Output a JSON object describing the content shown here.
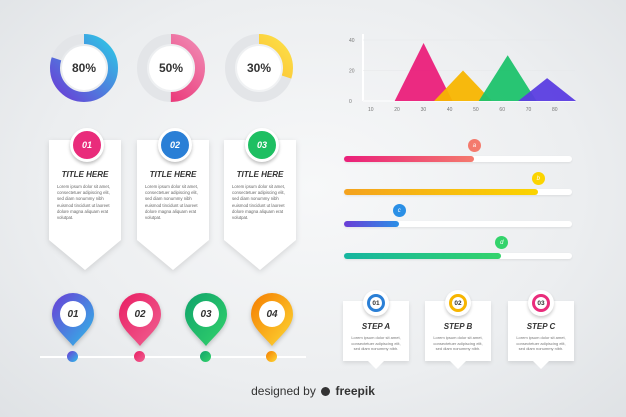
{
  "gauges": [
    {
      "label": "80%",
      "value": 0.8,
      "colors": [
        "#6a3dd6",
        "#2ec7e6"
      ]
    },
    {
      "label": "50%",
      "value": 0.5,
      "colors": [
        "#e9246b",
        "#f08ab3"
      ]
    },
    {
      "label": "30%",
      "value": 0.3,
      "colors": [
        "#f9a825",
        "#fde047"
      ]
    }
  ],
  "cards": [
    {
      "num": "01",
      "title": "TITLE HERE",
      "color": "#e92c7b",
      "text": "Lorem ipsum dolor sit amet, consectetuer adipiscing elit, sed diam nonummy nibh euismod tincidunt ut laoreet dolore magna aliquam erat volutpat."
    },
    {
      "num": "02",
      "title": "TITLE HERE",
      "color": "#2a7fd6",
      "text": "Lorem ipsum dolor sit amet, consectetuer adipiscing elit, sed diam nonummy nibh euismod tincidunt ut laoreet dolore magna aliquam erat volutpat."
    },
    {
      "num": "03",
      "title": "TITLE HERE",
      "color": "#1ebf62",
      "text": "Lorem ipsum dolor sit amet, consectetuer adipiscing elit, sed diam nonummy nibh euismod tincidunt ut laoreet dolore magna aliquam erat volutpat."
    }
  ],
  "chart_data": {
    "type": "area",
    "yticks": [
      "40",
      "20",
      "0"
    ],
    "xticks": [
      "10",
      "20",
      "30",
      "40",
      "50",
      "60",
      "70",
      "80"
    ],
    "ylim": [
      0,
      40
    ],
    "peaks": [
      {
        "center": 30,
        "height": 38,
        "color": "#ea1f7a"
      },
      {
        "center": 45,
        "height": 20,
        "color": "#f7b500"
      },
      {
        "center": 62,
        "height": 30,
        "color": "#1ec26b"
      },
      {
        "center": 77,
        "height": 15,
        "color": "#5b3de0"
      }
    ]
  },
  "bars": [
    {
      "label": "a",
      "value": 0.57,
      "colors": [
        "#ea1f7a",
        "#f47a6d"
      ]
    },
    {
      "label": "b",
      "value": 0.85,
      "colors": [
        "#f4a21f",
        "#fbd400"
      ]
    },
    {
      "label": "c",
      "value": 0.24,
      "colors": [
        "#6a3dd6",
        "#2a8fe6"
      ]
    },
    {
      "label": "d",
      "value": 0.69,
      "colors": [
        "#16b5a0",
        "#33d36b"
      ]
    }
  ],
  "pins": [
    {
      "num": "01",
      "colors": [
        "#6a3dd6",
        "#2fbce8"
      ]
    },
    {
      "num": "02",
      "colors": [
        "#e91e63",
        "#f06292"
      ]
    },
    {
      "num": "03",
      "colors": [
        "#0fa36b",
        "#34d36b"
      ]
    },
    {
      "num": "04",
      "colors": [
        "#f57c00",
        "#fdd835"
      ]
    }
  ],
  "steps": [
    {
      "num": "01",
      "title": "STEP A",
      "color": "#2a7fd6",
      "text": "Lorem ipsum dolor sit amet, consectetuer adipiscing elit, sed diam nonummy nibh."
    },
    {
      "num": "02",
      "title": "STEP B",
      "color": "#f7b500",
      "text": "Lorem ipsum dolor sit amet, consectetuer adipiscing elit, sed diam nonummy nibh."
    },
    {
      "num": "03",
      "title": "STEP C",
      "color": "#e92c7b",
      "text": "Lorem ipsum dolor sit amet, consectetuer adipiscing elit, sed diam nonummy nibh."
    }
  ],
  "footer": {
    "prefix": "designed by",
    "brand": "freepik"
  }
}
